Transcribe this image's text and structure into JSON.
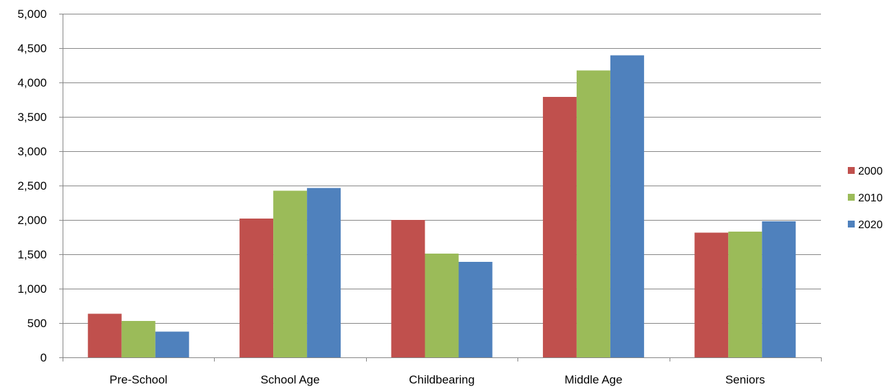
{
  "chart_data": {
    "type": "bar",
    "categories": [
      "Pre-School",
      "School Age",
      "Childbearing",
      "Middle Age",
      "Seniors"
    ],
    "series": [
      {
        "name": "2000",
        "color": "#C0504D",
        "values": [
          635,
          2020,
          2000,
          3790,
          1815
        ]
      },
      {
        "name": "2010",
        "color": "#9BBB59",
        "values": [
          530,
          2425,
          1510,
          4175,
          1830
        ]
      },
      {
        "name": "2020",
        "color": "#4F81BD",
        "values": [
          375,
          2465,
          1390,
          4395,
          1980
        ]
      }
    ],
    "title": "",
    "xlabel": "",
    "ylabel": "",
    "ylim": [
      0,
      5000
    ],
    "yticks": [
      0,
      500,
      1000,
      1500,
      2000,
      2500,
      3000,
      3500,
      4000,
      4500,
      5000
    ],
    "ytick_labels": [
      "0",
      "500",
      "1,000",
      "1,500",
      "2,000",
      "2,500",
      "3,000",
      "3,500",
      "4,000",
      "4,500",
      "5,000"
    ],
    "grid": true,
    "legend_position": "right"
  }
}
